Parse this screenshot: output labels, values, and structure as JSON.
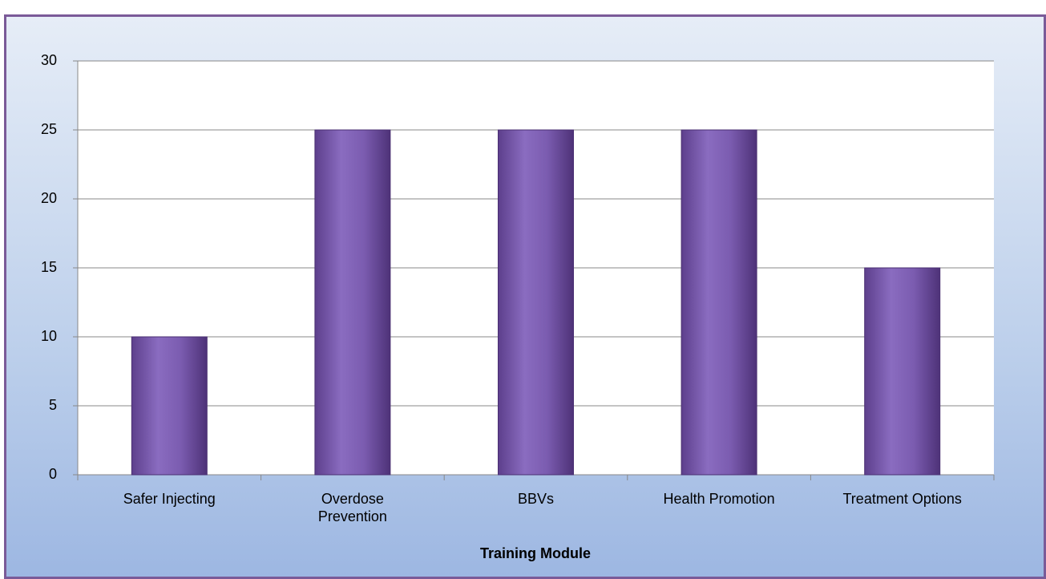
{
  "chart_data": {
    "type": "bar",
    "categories": [
      "Safer Injecting",
      "Overdose\nPrevention",
      "BBVs",
      "Health Promotion",
      "Treatment Options"
    ],
    "values": [
      10,
      25,
      25,
      25,
      15
    ],
    "color": "#7b5cb0",
    "x_label": "Training Module",
    "ylim": [
      0,
      30
    ],
    "yticks": [
      0,
      5,
      10,
      15,
      20,
      25,
      30
    ],
    "grid": true
  }
}
